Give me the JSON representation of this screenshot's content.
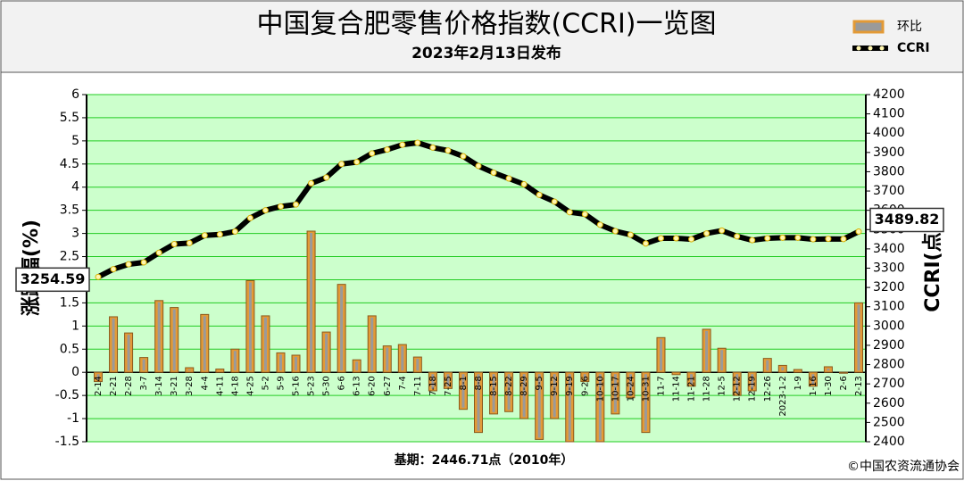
{
  "chart_data": {
    "type": "bar-line",
    "title": "中国复合肥零售价格指数(CCRI)一览图",
    "subtitle": "2023年2月13日发布",
    "y_label": "涨跌幅(%)",
    "y2_label": "CCRI(点)",
    "footnote": "基期：2446.71点（2010年）",
    "source": "©中国农资流通协会",
    "grid": true,
    "categories": [
      "2-14",
      "2-21",
      "2-28",
      "3-7",
      "3-14",
      "3-21",
      "3-28",
      "4-4",
      "4-11",
      "4-18",
      "4-25",
      "5-2",
      "5-9",
      "5-16",
      "5-23",
      "5-30",
      "6-6",
      "6-13",
      "6-20",
      "6-27",
      "7-4",
      "7-11",
      "7-18",
      "7-25",
      "8-1",
      "8-8",
      "8-15",
      "8-22",
      "8-29",
      "9-5",
      "9-12",
      "9-19",
      "9-26",
      "10-10",
      "10-17",
      "10-24",
      "10-31",
      "11-7",
      "11-14",
      "11-21",
      "11-28",
      "12-5",
      "12-12",
      "12-19",
      "12-26",
      "2023-1-2",
      "1-9",
      "1-16",
      "1-30",
      "2-6",
      "2-13"
    ],
    "ylim": [
      -1.5,
      6
    ],
    "yticks": [
      -1.5,
      -1,
      -0.5,
      0,
      0.5,
      1,
      1.5,
      2,
      2.5,
      3,
      3.5,
      4,
      4.5,
      5,
      5.5,
      6
    ],
    "y2lim": [
      2400,
      4200
    ],
    "y2ticks": [
      2400,
      2500,
      2600,
      2700,
      2800,
      2900,
      3000,
      3100,
      3200,
      3300,
      3400,
      3500,
      3600,
      3700,
      3800,
      3900,
      4000,
      4100,
      4200
    ],
    "series": [
      {
        "name": "环比",
        "type": "bar",
        "color": "#e39a36",
        "values": [
          -0.2,
          1.2,
          0.85,
          0.32,
          1.55,
          1.4,
          0.1,
          1.25,
          0.07,
          0.5,
          1.98,
          1.22,
          0.42,
          0.37,
          3.05,
          0.87,
          1.9,
          0.27,
          1.22,
          0.57,
          0.6,
          0.33,
          -0.4,
          -0.35,
          -0.8,
          -1.3,
          -0.9,
          -0.85,
          -1.0,
          -1.45,
          -1.0,
          -1.5,
          -0.2,
          -1.5,
          -0.9,
          -0.55,
          -1.3,
          0.75,
          -0.05,
          -0.3,
          0.93,
          0.52,
          -0.5,
          -0.4,
          0.3,
          0.15,
          0.06,
          -0.3,
          0.12,
          -0.02,
          1.5
        ]
      },
      {
        "name": "CCRI",
        "type": "line",
        "axis": "y2",
        "color": "#000000",
        "values": [
          3254.59,
          3295,
          3320,
          3330,
          3380,
          3425,
          3430,
          3470,
          3475,
          3490,
          3560,
          3600,
          3620,
          3630,
          3740,
          3770,
          3840,
          3850,
          3895,
          3915,
          3940,
          3950,
          3925,
          3910,
          3880,
          3830,
          3795,
          3765,
          3735,
          3680,
          3645,
          3590,
          3580,
          3525,
          3492,
          3473,
          3428,
          3455,
          3455,
          3450,
          3480,
          3495,
          3465,
          3445,
          3455,
          3458,
          3458,
          3450,
          3452,
          3451,
          3489.82
        ],
        "value_labels": [
          "3254.59",
          null,
          null,
          null,
          null,
          null,
          null,
          null,
          null,
          null,
          null,
          null,
          null,
          null,
          null,
          null,
          null,
          null,
          null,
          null,
          null,
          null,
          null,
          null,
          null,
          null,
          null,
          null,
          null,
          null,
          null,
          null,
          null,
          null,
          null,
          null,
          null,
          null,
          null,
          null,
          null,
          null,
          null,
          null,
          null,
          null,
          null,
          null,
          null,
          null,
          "3489.82"
        ]
      }
    ]
  }
}
